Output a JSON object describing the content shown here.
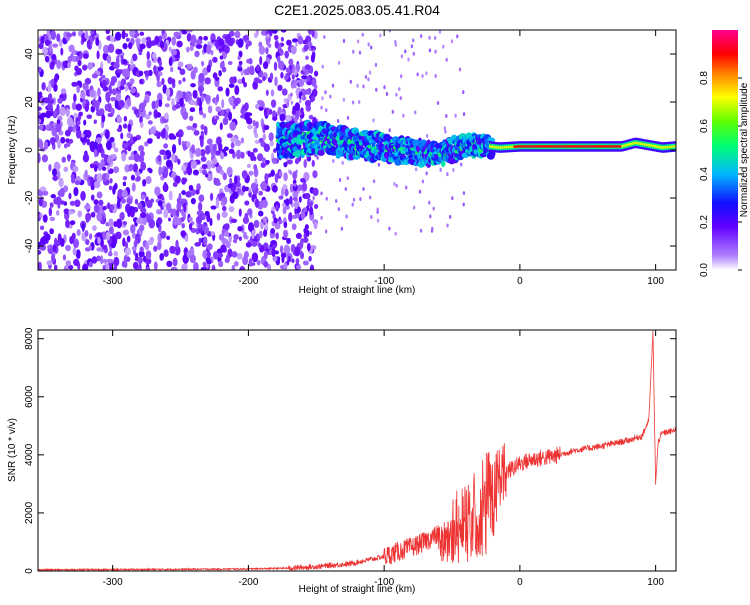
{
  "title": "C2E1.2025.083.05.41.R04",
  "chart_data": [
    {
      "type": "heatmap",
      "title": "C2E1.2025.083.05.41.R04",
      "xlabel": "Height of straight line (km)",
      "ylabel": "Frequency (Hz)",
      "xlim": [
        -355,
        115
      ],
      "ylim": [
        -50,
        50
      ],
      "xticks": [
        -300,
        -200,
        -100,
        0,
        100
      ],
      "yticks": [
        -40,
        -20,
        0,
        20,
        40
      ],
      "colorbar": {
        "label": "Normalized spectral amplitude",
        "range": [
          0,
          1
        ],
        "ticks": [
          0.0,
          0.2,
          0.4,
          0.6,
          0.8
        ],
        "tick_labels": [
          "0.0",
          "0.2",
          "0.4",
          "0.6",
          "0.8"
        ],
        "colors": [
          "#ffffff",
          "#8a00ff",
          "#2a00ff",
          "#00d8ff",
          "#00ff40",
          "#ffff00",
          "#ff0000",
          "#ff0090"
        ]
      },
      "signal_track": {
        "x": [
          -175,
          -150,
          -125,
          -100,
          -75,
          -60,
          -45,
          -30,
          -15,
          0,
          25,
          50,
          75,
          85,
          95,
          105,
          115
        ],
        "freq_hz": [
          4,
          5,
          3,
          1,
          -1,
          -2,
          1,
          2,
          1,
          1.5,
          1.5,
          1.5,
          1.5,
          3,
          2,
          1,
          1.5
        ]
      },
      "noise_region": {
        "x_from": -355,
        "x_to": -170
      }
    },
    {
      "type": "line",
      "xlabel": "Height of straight line (km)",
      "ylabel": "SNR (10 * v/v)",
      "xlim": [
        -355,
        115
      ],
      "ylim": [
        0,
        8300
      ],
      "xticks": [
        -300,
        -200,
        -100,
        0,
        100
      ],
      "yticks": [
        0,
        2000,
        4000,
        6000,
        8000
      ],
      "color": "#ee3333",
      "series": [
        {
          "x": [
            -355,
            -300,
            -250,
            -200,
            -170,
            -150,
            -125,
            -100,
            -75,
            -50,
            -35,
            -25,
            -15,
            -10,
            0,
            10,
            25,
            40,
            60,
            80,
            90,
            95,
            98,
            100,
            102,
            105,
            115
          ],
          "y": [
            40,
            50,
            60,
            70,
            100,
            150,
            250,
            500,
            900,
            1500,
            2200,
            3000,
            3300,
            3400,
            3700,
            3850,
            3950,
            4150,
            4300,
            4500,
            4650,
            5200,
            8200,
            3000,
            4500,
            4750,
            4850
          ]
        }
      ]
    }
  ]
}
